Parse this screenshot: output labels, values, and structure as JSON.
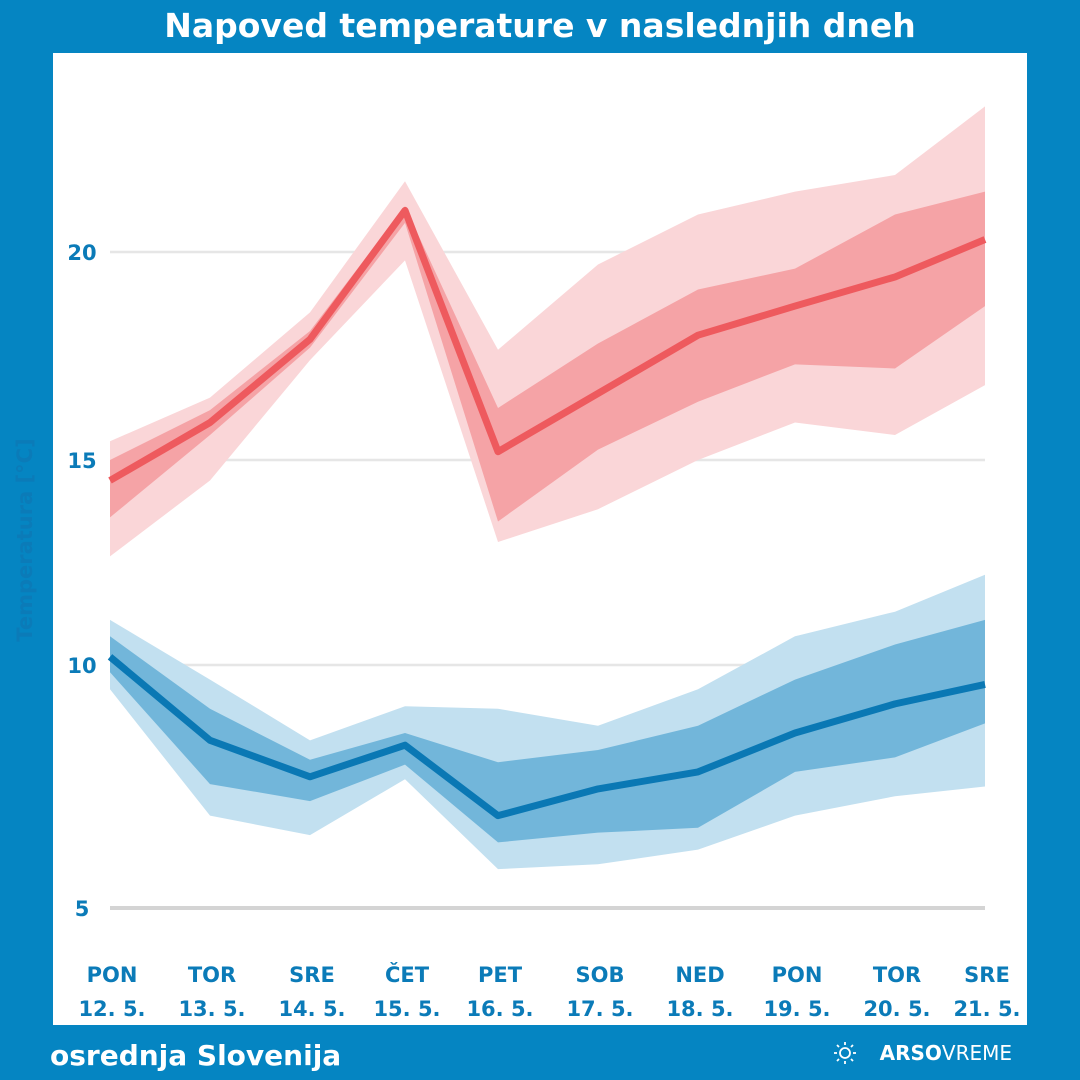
{
  "title": "Napoved temperature v naslednjih dneh",
  "region": "osrednja Slovenija",
  "logo": {
    "brand": "ARSO",
    "product": "VREME",
    "icon": "sun-cloud-icon"
  },
  "colors": {
    "background": "#0585c2",
    "max_line": "#ee5a5e",
    "max_inner": "#f5a3a6",
    "max_outer": "#fad6d8",
    "min_line": "#0a78b4",
    "min_inner": "#72b6da",
    "min_outer": "#c2e0f0",
    "axis_text": "#0b7bb8"
  },
  "chart_data": {
    "type": "line",
    "title": "Napoved temperature v naslednjih dneh",
    "ylabel": "Temperatura [°C]",
    "xlabel": "",
    "yticks": [
      5,
      10,
      15,
      20
    ],
    "grid": true,
    "categories": [
      {
        "day": "PON",
        "date": "12. 5."
      },
      {
        "day": "TOR",
        "date": "13. 5."
      },
      {
        "day": "SRE",
        "date": "14. 5."
      },
      {
        "day": "ČET",
        "date": "15. 5."
      },
      {
        "day": "PET",
        "date": "16. 5."
      },
      {
        "day": "SOB",
        "date": "17. 5."
      },
      {
        "day": "NED",
        "date": "18. 5."
      },
      {
        "day": "PON",
        "date": "19. 5."
      },
      {
        "day": "TOR",
        "date": "20. 5."
      },
      {
        "day": "SRE",
        "date": "21. 5."
      }
    ],
    "series": [
      {
        "key": "max",
        "median": [
          14.5,
          15.9,
          17.9,
          21.0,
          15.2,
          16.6,
          18.0,
          18.7,
          19.4,
          20.3
        ],
        "inner_upper": [
          15.0,
          16.2,
          18.1,
          21.1,
          16.25,
          17.8,
          19.1,
          19.6,
          20.9,
          21.45
        ],
        "inner_lower": [
          13.6,
          15.6,
          17.7,
          20.7,
          13.5,
          15.25,
          16.4,
          17.3,
          17.2,
          18.7
        ],
        "outer_upper": [
          15.45,
          16.5,
          18.55,
          21.7,
          17.65,
          19.7,
          20.9,
          21.45,
          21.85,
          23.5
        ],
        "outer_lower": [
          12.65,
          14.5,
          17.4,
          19.8,
          13.0,
          13.8,
          15.0,
          15.9,
          15.6,
          16.8
        ]
      },
      {
        "key": "min",
        "median": [
          10.2,
          8.45,
          7.7,
          8.35,
          6.9,
          7.45,
          7.8,
          8.6,
          9.2,
          9.6
        ],
        "inner_upper": [
          10.7,
          9.1,
          8.05,
          8.6,
          8.0,
          8.25,
          8.75,
          9.7,
          10.5,
          11.1
        ],
        "inner_lower": [
          9.85,
          7.55,
          7.2,
          7.95,
          6.35,
          6.55,
          6.65,
          7.8,
          8.1,
          8.8
        ],
        "outer_upper": [
          11.1,
          9.7,
          8.45,
          9.15,
          9.1,
          8.75,
          9.5,
          10.7,
          11.3,
          12.2
        ],
        "outer_lower": [
          9.5,
          6.9,
          6.5,
          7.65,
          5.8,
          5.9,
          6.2,
          6.9,
          7.3,
          7.5
        ]
      }
    ]
  }
}
